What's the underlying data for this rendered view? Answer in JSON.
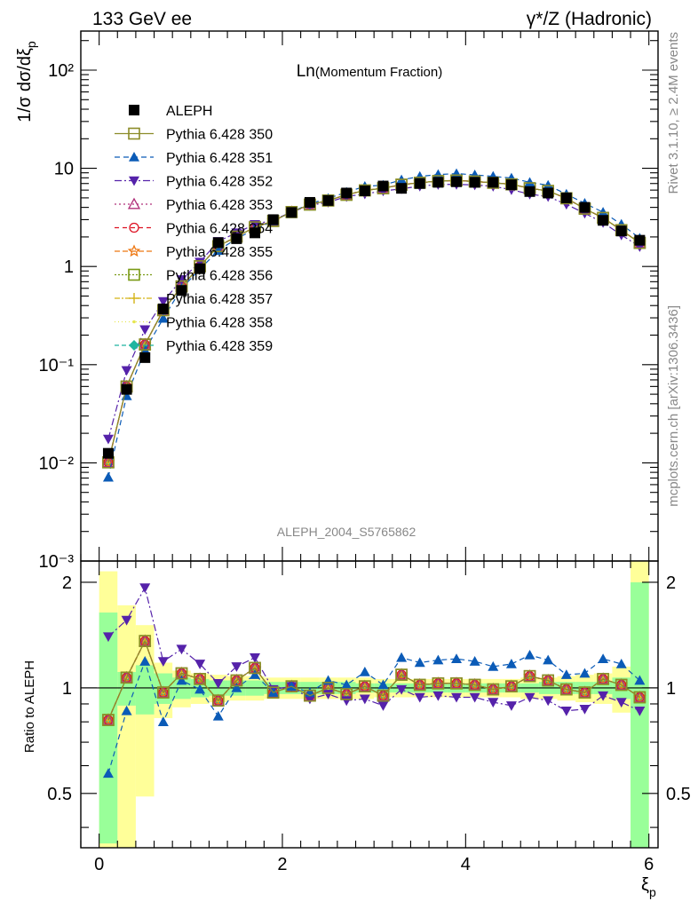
{
  "header": {
    "left": "133 GeV ee",
    "right": "γ*/Z (Hadronic)"
  },
  "side_labels": {
    "rivet": "Rivet 3.1.10, ≥ 2.4M events",
    "site": "mcplots.cern.ch [arXiv:1306.3436]"
  },
  "chart_data": {
    "type": "line",
    "title": "Ln(Momentum Fraction)",
    "title_main": "Ln",
    "title_sub": "(Momentum Fraction)",
    "analysis": "ALEPH_2004_S5765862",
    "xlabel": "ξ",
    "xlabel_sub": "p",
    "ylabel": "1/σ dσ/dξ",
    "ylabel_sub": "p",
    "ratio_ylabel": "Ratio to ALEPH",
    "xlim": [
      -0.2,
      6.1
    ],
    "ylim": [
      0.001,
      250
    ],
    "yscale": "log",
    "ratio_ylim": [
      0.35,
      2.3
    ],
    "ratio_yscale": "log",
    "x_ticks": [
      "0",
      "2",
      "4",
      "6"
    ],
    "y_ticks": [
      "10⁻³",
      "10⁻²",
      "10⁻¹",
      "1",
      "10",
      "10²"
    ],
    "ratio_ticks": [
      "0.5",
      "1",
      "2"
    ],
    "legend_position": "top-left",
    "x": [
      0.1,
      0.3,
      0.5,
      0.7,
      0.9,
      1.1,
      1.3,
      1.5,
      1.7,
      1.9,
      2.1,
      2.3,
      2.5,
      2.7,
      2.9,
      3.1,
      3.3,
      3.5,
      3.7,
      3.9,
      4.1,
      4.3,
      4.5,
      4.7,
      4.9,
      5.1,
      5.3,
      5.5,
      5.7,
      5.9
    ],
    "data": {
      "name": "ALEPH",
      "values": [
        0.0125,
        0.056,
        0.118,
        0.37,
        0.57,
        0.95,
        1.75,
        1.92,
        2.2,
        3.0,
        3.55,
        4.5,
        4.7,
        5.6,
        5.9,
        6.6,
        6.25,
        7.0,
        7.2,
        7.3,
        7.2,
        7.2,
        6.8,
        5.8,
        5.6,
        5.0,
        4.0,
        2.95,
        2.3,
        1.85
      ]
    },
    "ratio_band_inner": [
      [
        0.36,
        1.64
      ],
      [
        0.89,
        1.11
      ],
      [
        0.84,
        1.16
      ],
      [
        0.9,
        1.1
      ],
      [
        0.93,
        1.07
      ],
      [
        0.94,
        1.06
      ],
      [
        0.95,
        1.05
      ],
      [
        0.95,
        1.05
      ],
      [
        0.95,
        1.05
      ],
      [
        0.96,
        1.04
      ],
      [
        0.96,
        1.04
      ],
      [
        0.96,
        1.04
      ],
      [
        0.96,
        1.04
      ],
      [
        0.96,
        1.04
      ],
      [
        0.97,
        1.03
      ],
      [
        0.97,
        1.03
      ],
      [
        0.97,
        1.03
      ],
      [
        0.97,
        1.03
      ],
      [
        0.97,
        1.03
      ],
      [
        0.97,
        1.03
      ],
      [
        0.97,
        1.03
      ],
      [
        0.97,
        1.03
      ],
      [
        0.97,
        1.03
      ],
      [
        0.97,
        1.03
      ],
      [
        0.96,
        1.04
      ],
      [
        0.96,
        1.04
      ],
      [
        0.96,
        1.04
      ],
      [
        0.96,
        1.04
      ],
      [
        0.93,
        1.07
      ],
      [
        0.35,
        2.0
      ]
    ],
    "ratio_band_outer": [
      [
        0.35,
        2.15
      ],
      [
        0.35,
        1.72
      ],
      [
        0.49,
        1.51
      ],
      [
        0.82,
        1.18
      ],
      [
        0.88,
        1.12
      ],
      [
        0.9,
        1.1
      ],
      [
        0.91,
        1.09
      ],
      [
        0.92,
        1.08
      ],
      [
        0.92,
        1.08
      ],
      [
        0.93,
        1.07
      ],
      [
        0.93,
        1.07
      ],
      [
        0.93,
        1.07
      ],
      [
        0.93,
        1.07
      ],
      [
        0.93,
        1.07
      ],
      [
        0.93,
        1.07
      ],
      [
        0.94,
        1.06
      ],
      [
        0.94,
        1.06
      ],
      [
        0.94,
        1.06
      ],
      [
        0.94,
        1.06
      ],
      [
        0.94,
        1.06
      ],
      [
        0.94,
        1.06
      ],
      [
        0.94,
        1.06
      ],
      [
        0.94,
        1.06
      ],
      [
        0.93,
        1.07
      ],
      [
        0.93,
        1.07
      ],
      [
        0.92,
        1.08
      ],
      [
        0.91,
        1.09
      ],
      [
        0.9,
        1.1
      ],
      [
        0.85,
        1.15
      ],
      [
        0.35,
        2.3
      ]
    ],
    "series": [
      {
        "name": "Pythia 6.428 350",
        "color": "#8c8c28",
        "marker": "square-open",
        "dash": "",
        "ratio": [
          0.81,
          1.07,
          1.36,
          0.97,
          1.1,
          1.06,
          0.92,
          1.05,
          1.14,
          0.97,
          1.01,
          0.95,
          1.0,
          0.96,
          1.01,
          0.95,
          1.09,
          1.02,
          1.03,
          1.03,
          1.02,
          0.99,
          1.01,
          1.08,
          1.05,
          0.99,
          0.97,
          1.06,
          1.02,
          0.94
        ]
      },
      {
        "name": "Pythia 6.428 351",
        "color": "#0b5bb7",
        "marker": "triangle-up",
        "dash": "6,4",
        "ratio": [
          0.57,
          0.86,
          1.19,
          0.8,
          1.05,
          0.99,
          0.83,
          1.0,
          1.09,
          0.97,
          1.01,
          0.97,
          1.05,
          1.02,
          1.11,
          1.02,
          1.22,
          1.18,
          1.2,
          1.21,
          1.19,
          1.15,
          1.17,
          1.24,
          1.2,
          1.09,
          1.1,
          1.21,
          1.17,
          1.05
        ]
      },
      {
        "name": "Pythia 6.428 352",
        "color": "#5522aa",
        "marker": "triangle-down",
        "dash": "8,3,2,3",
        "ratio": [
          1.4,
          1.56,
          1.93,
          1.19,
          1.29,
          1.17,
          1.03,
          1.15,
          1.22,
          0.99,
          1.01,
          0.93,
          0.96,
          0.92,
          0.93,
          0.89,
          0.99,
          0.94,
          0.95,
          0.94,
          0.94,
          0.91,
          0.89,
          0.94,
          0.92,
          0.86,
          0.87,
          0.95,
          0.91,
          0.86
        ]
      },
      {
        "name": "Pythia 6.428 353",
        "color": "#b0307a",
        "marker": "triangle-open",
        "dash": "2,3",
        "ratio": [
          0.81,
          1.07,
          1.36,
          0.97,
          1.1,
          1.06,
          0.92,
          1.05,
          1.14,
          0.97,
          1.01,
          0.95,
          1.0,
          0.96,
          1.01,
          0.95,
          1.09,
          1.02,
          1.03,
          1.03,
          1.02,
          0.99,
          1.01,
          1.08,
          1.05,
          0.99,
          0.97,
          1.06,
          1.02,
          0.94
        ]
      },
      {
        "name": "Pythia 6.428 354",
        "color": "#dd1122",
        "marker": "circle-open",
        "dash": "5,4",
        "ratio": [
          0.81,
          1.07,
          1.36,
          0.97,
          1.1,
          1.06,
          0.92,
          1.05,
          1.14,
          0.97,
          1.01,
          0.95,
          1.0,
          0.96,
          1.01,
          0.95,
          1.09,
          1.02,
          1.03,
          1.03,
          1.02,
          0.99,
          1.01,
          1.08,
          1.05,
          0.99,
          0.97,
          1.06,
          1.02,
          0.94
        ]
      },
      {
        "name": "Pythia 6.428 355",
        "color": "#ee7711",
        "marker": "star-open",
        "dash": "6,3",
        "ratio": [
          0.81,
          1.07,
          1.36,
          0.97,
          1.1,
          1.06,
          0.92,
          1.05,
          1.14,
          0.97,
          1.01,
          0.95,
          1.0,
          0.96,
          1.01,
          0.95,
          1.09,
          1.02,
          1.03,
          1.03,
          1.02,
          0.99,
          1.01,
          1.08,
          1.05,
          0.99,
          0.97,
          1.06,
          1.02,
          0.94
        ]
      },
      {
        "name": "Pythia 6.428 356",
        "color": "#7a9a15",
        "marker": "square-open",
        "dash": "2,2",
        "ratio": [
          0.81,
          1.07,
          1.36,
          0.97,
          1.1,
          1.06,
          0.92,
          1.05,
          1.14,
          0.97,
          1.01,
          0.95,
          1.0,
          0.96,
          1.01,
          0.95,
          1.09,
          1.02,
          1.03,
          1.03,
          1.02,
          0.99,
          1.01,
          1.08,
          1.05,
          0.99,
          0.97,
          1.06,
          1.02,
          0.94
        ]
      },
      {
        "name": "Pythia 6.428 357",
        "color": "#d4b416",
        "marker": "cross",
        "dash": "6,2,2,2",
        "ratio": [
          0.81,
          1.07,
          1.36,
          0.97,
          1.1,
          1.06,
          0.92,
          1.05,
          1.14,
          0.97,
          1.01,
          0.95,
          1.0,
          0.96,
          1.01,
          0.95,
          1.09,
          1.02,
          1.03,
          1.03,
          1.02,
          0.99,
          1.01,
          1.08,
          1.05,
          0.99,
          0.97,
          1.06,
          1.02,
          0.94
        ]
      },
      {
        "name": "Pythia 6.428 358",
        "color": "#e6e650",
        "marker": "dot",
        "dash": "1,3",
        "ratio": [
          0.81,
          1.07,
          1.36,
          0.97,
          1.1,
          1.06,
          0.92,
          1.05,
          1.14,
          0.97,
          1.01,
          0.95,
          1.0,
          0.96,
          1.01,
          0.95,
          1.09,
          1.02,
          1.03,
          1.03,
          1.02,
          0.99,
          1.01,
          1.08,
          1.05,
          0.99,
          0.97,
          1.06,
          1.02,
          0.94
        ]
      },
      {
        "name": "Pythia 6.428 359",
        "color": "#1fb5a0",
        "marker": "diamond",
        "dash": "5,3",
        "ratio": [
          0.81,
          1.07,
          1.36,
          0.97,
          1.1,
          1.06,
          0.92,
          1.05,
          1.14,
          0.97,
          1.01,
          0.95,
          1.0,
          0.96,
          1.01,
          0.95,
          1.09,
          1.02,
          1.03,
          1.03,
          1.02,
          0.99,
          1.01,
          1.08,
          1.05,
          0.99,
          0.97,
          1.06,
          1.02,
          0.94
        ]
      }
    ]
  }
}
